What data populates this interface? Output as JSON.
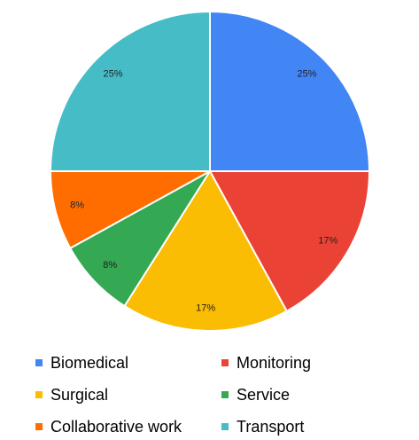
{
  "chart_data": {
    "type": "pie",
    "categories": [
      "Biomedical",
      "Monitoring",
      "Surgical",
      "Service",
      "Collaborative work",
      "Transport"
    ],
    "values": [
      25,
      17,
      17,
      8,
      8,
      25
    ],
    "labels": [
      "25%",
      "17%",
      "17%",
      "8%",
      "8%",
      "25%"
    ],
    "colors": [
      "#4285F4",
      "#EA4335",
      "#FBBC04",
      "#34A853",
      "#FF6D01",
      "#46BDC6"
    ],
    "legend_position": "bottom",
    "start_angle_deg": 0,
    "direction": "clockwise"
  },
  "legend": {
    "items": [
      {
        "label": "Biomedical",
        "color": "#4285F4"
      },
      {
        "label": "Monitoring",
        "color": "#EA4335"
      },
      {
        "label": "Surgical",
        "color": "#FBBC04"
      },
      {
        "label": "Service",
        "color": "#34A853"
      },
      {
        "label": "Collaborative work",
        "color": "#FF6D01"
      },
      {
        "label": "Transport",
        "color": "#46BDC6"
      }
    ]
  }
}
